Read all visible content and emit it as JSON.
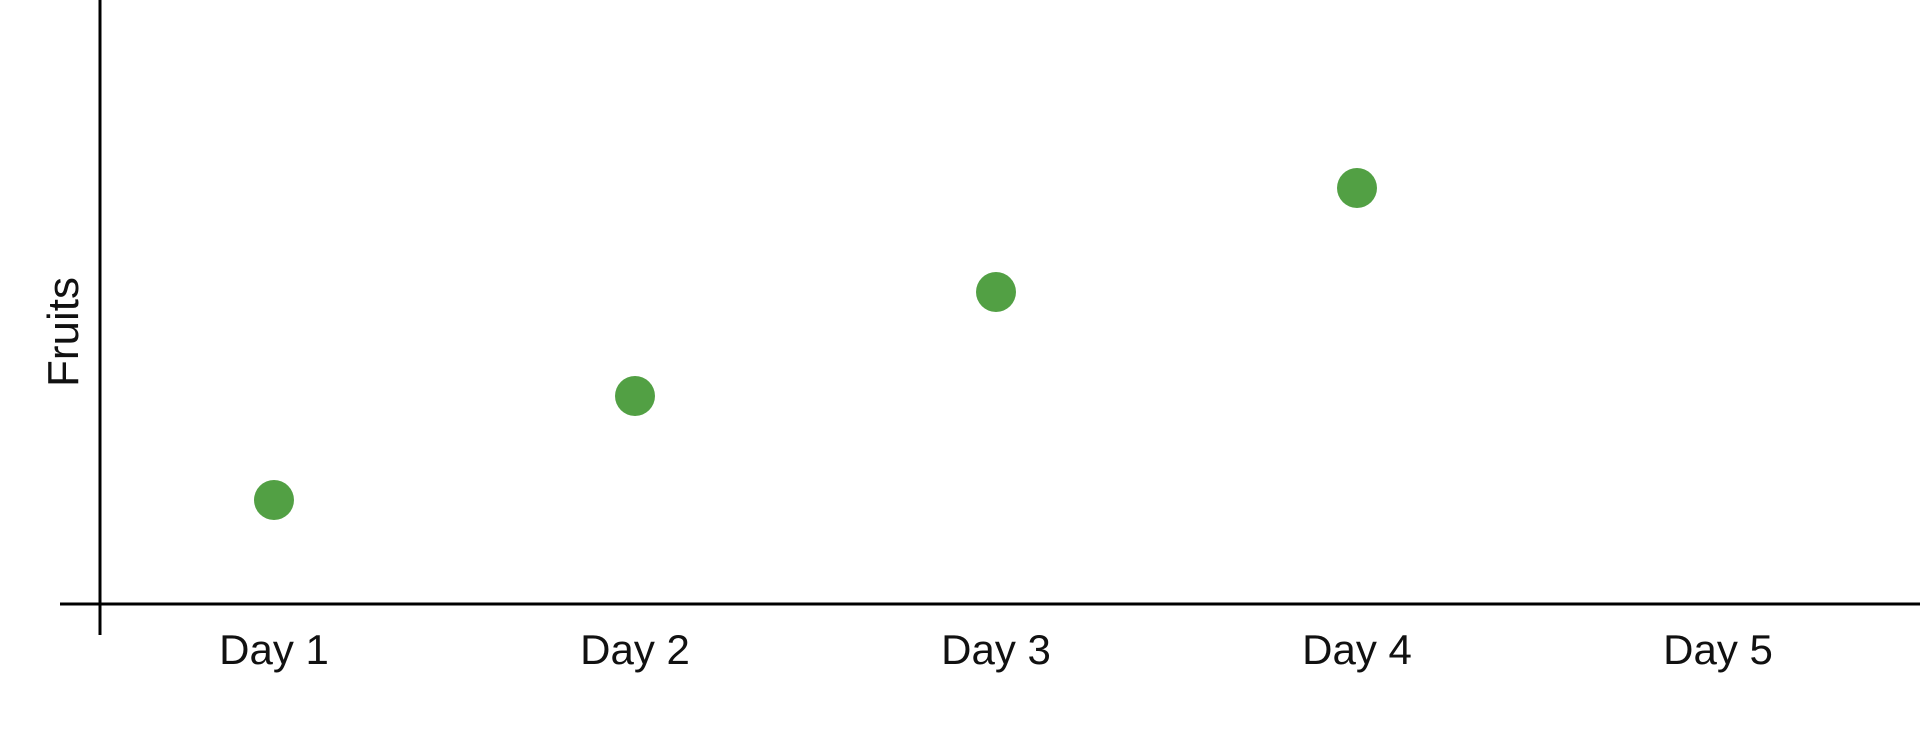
{
  "chart_data": {
    "type": "scatter",
    "categories": [
      "Day 1",
      "Day 2",
      "Day 3",
      "Day 4",
      "Day 5"
    ],
    "series": [
      {
        "values": [
          1,
          2,
          3,
          4,
          null
        ],
        "color": "#52a044"
      }
    ],
    "title": "",
    "xlabel": "",
    "ylabel": "Fruits",
    "ylim": [
      0,
      5
    ],
    "grid": false,
    "legend": "none"
  }
}
